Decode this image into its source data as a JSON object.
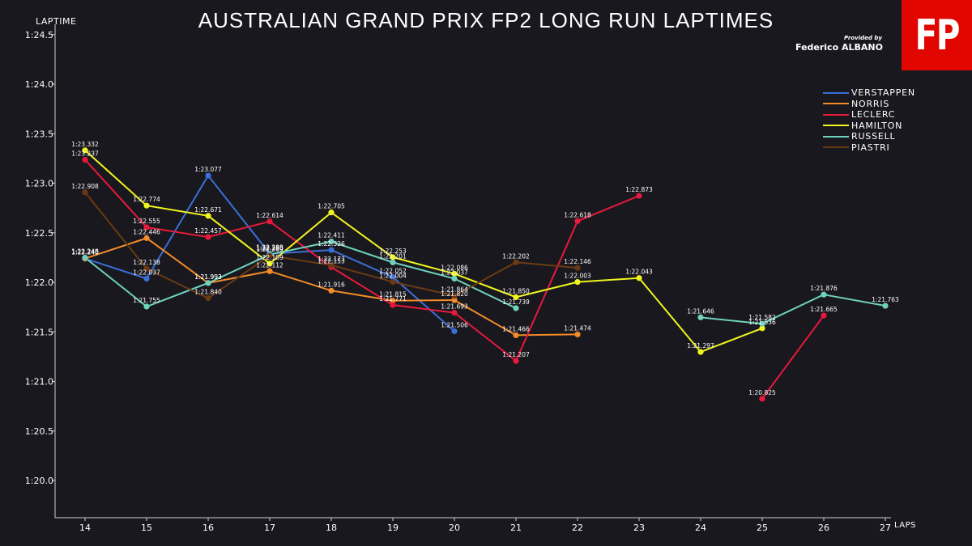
{
  "header": {
    "title": "AUSTRALIAN GRAND PRIX FP2 LONG RUN LAPTIMES",
    "credit_prefix": "Provided by",
    "credit_name": "Federico ALBANO",
    "logo_text": "FP",
    "logo_color": "#e10600"
  },
  "chart_data": {
    "type": "line",
    "title": "AUSTRALIAN GRAND PRIX FP2 LONG RUN LAPTIMES",
    "xlabel": "LAPS",
    "ylabel": "LAPTIME",
    "xlim": [
      13.5,
      27.5
    ],
    "ylim": [
      79.6,
      84.55
    ],
    "x_ticks": [
      14,
      15,
      16,
      17,
      18,
      19,
      20,
      21,
      22,
      23,
      24,
      25,
      26,
      27
    ],
    "y_ticks": [
      {
        "value": 80.0,
        "label": "1:20.0"
      },
      {
        "value": 80.5,
        "label": "1:20.5"
      },
      {
        "value": 81.0,
        "label": "1:21.0"
      },
      {
        "value": 81.5,
        "label": "1:21.5"
      },
      {
        "value": 82.0,
        "label": "1:22.0"
      },
      {
        "value": 82.5,
        "label": "1:22.5"
      },
      {
        "value": 83.0,
        "label": "1:23.0"
      },
      {
        "value": 83.5,
        "label": "1:23.5"
      },
      {
        "value": 84.0,
        "label": "1:24.0"
      },
      {
        "value": 84.5,
        "label": "1:24.5"
      }
    ],
    "grid": false,
    "legend_position": "top-right",
    "series": [
      {
        "name": "VERSTAPPEN",
        "color": "#3a6fd8",
        "points": [
          {
            "x": 14,
            "y": 82.24,
            "label": "1:22.240"
          },
          {
            "x": 15,
            "y": 82.037,
            "label": "1:22.037"
          },
          {
            "x": 16,
            "y": 83.077,
            "label": "1:23.077"
          },
          {
            "x": 17,
            "y": 82.288,
            "label": "1:22.288"
          },
          {
            "x": 18,
            "y": 82.326,
            "label": "1:22.326"
          },
          {
            "x": 19,
            "y": 82.052,
            "label": "1:22.052"
          },
          {
            "x": 20,
            "y": 81.506,
            "label": "1:21.506"
          }
        ]
      },
      {
        "name": "NORRIS",
        "color": "#f28c28",
        "points": [
          {
            "x": 14,
            "y": 82.24,
            "label": "1:22.240"
          },
          {
            "x": 15,
            "y": 82.446,
            "label": "1:22.446"
          },
          {
            "x": 16,
            "y": 81.993,
            "label": "1:21.993"
          },
          {
            "x": 17,
            "y": 82.112,
            "label": "1:22.112"
          },
          {
            "x": 18,
            "y": 81.916,
            "label": "1:21.916"
          },
          {
            "x": 19,
            "y": 81.815,
            "label": "1:21.815"
          },
          {
            "x": 20,
            "y": 81.82,
            "label": "1:21.820"
          },
          {
            "x": 21,
            "y": 81.466,
            "label": "1:21.466"
          },
          {
            "x": 22,
            "y": 81.474,
            "label": "1:21.474"
          }
        ]
      },
      {
        "name": "LECLERC",
        "color": "#e8193c",
        "points": [
          {
            "x": 14,
            "y": 83.237,
            "label": "1:23.237"
          },
          {
            "x": 15,
            "y": 82.555,
            "label": "1:22.555"
          },
          {
            "x": 16,
            "y": 82.457,
            "label": "1:22.457"
          },
          {
            "x": 17,
            "y": 82.614,
            "label": "1:22.614"
          },
          {
            "x": 18,
            "y": 82.153,
            "label": "1:22.153"
          },
          {
            "x": 19,
            "y": 81.771,
            "label": "1:21.771"
          },
          {
            "x": 20,
            "y": 81.693,
            "label": "1:21.693"
          },
          {
            "x": 21,
            "y": 81.207,
            "label": "1:21.207"
          },
          {
            "x": 22,
            "y": 82.618,
            "label": "1:22.618"
          },
          {
            "x": 23,
            "y": 82.873,
            "label": "1:22.873"
          },
          {
            "x": 25,
            "y": 80.825,
            "label": "1:20.825"
          },
          {
            "x": 26,
            "y": 81.665,
            "label": "1:21.665"
          }
        ]
      },
      {
        "name": "HAMILTON",
        "color": "#f0f51e",
        "points": [
          {
            "x": 14,
            "y": 83.332,
            "label": "1:23.332"
          },
          {
            "x": 15,
            "y": 82.774,
            "label": "1:22.774"
          },
          {
            "x": 16,
            "y": 82.671,
            "label": "1:22.671"
          },
          {
            "x": 17,
            "y": 82.189,
            "label": "1:22.189"
          },
          {
            "x": 18,
            "y": 82.705,
            "label": "1:22.705"
          },
          {
            "x": 19,
            "y": 82.253,
            "label": "1:22.253"
          },
          {
            "x": 20,
            "y": 82.086,
            "label": "1:22.086"
          },
          {
            "x": 21,
            "y": 81.85,
            "label": "1:21.850"
          },
          {
            "x": 22,
            "y": 82.003,
            "label": "1:22.003"
          },
          {
            "x": 23,
            "y": 82.043,
            "label": "1:22.043"
          },
          {
            "x": 24,
            "y": 81.297,
            "label": "1:21.297"
          },
          {
            "x": 25,
            "y": 81.536,
            "label": "1:21.536"
          }
        ]
      },
      {
        "name": "RUSSELL",
        "color": "#6ed3be",
        "points": [
          {
            "x": 14,
            "y": 82.248,
            "label": "1:22.248"
          },
          {
            "x": 15,
            "y": 81.755,
            "label": "1:21.755"
          },
          {
            "x": 16,
            "y": 81.993,
            "label": "1:21.993"
          },
          {
            "x": 17,
            "y": 82.28,
            "label": "1:22.280"
          },
          {
            "x": 18,
            "y": 82.411,
            "label": "1:22.411"
          },
          {
            "x": 19,
            "y": 82.201,
            "label": "1:22.201"
          },
          {
            "x": 20,
            "y": 82.037,
            "label": "1:22.037"
          },
          {
            "x": 21,
            "y": 81.739,
            "label": "1:21.739"
          },
          {
            "x": 24,
            "y": 81.646,
            "label": "1:21.646"
          },
          {
            "x": 25,
            "y": 81.582,
            "label": "1:21.582"
          },
          {
            "x": 26,
            "y": 81.876,
            "label": "1:21.876"
          },
          {
            "x": 27,
            "y": 81.763,
            "label": "1:21.763"
          }
        ]
      },
      {
        "name": "PIASTRI",
        "color": "#6b3a14",
        "points": [
          {
            "x": 14,
            "y": 82.908,
            "label": "1:22.908"
          },
          {
            "x": 15,
            "y": 82.138,
            "label": "1:22.138"
          },
          {
            "x": 16,
            "y": 81.84,
            "label": "1:21.840"
          },
          {
            "x": 17,
            "y": 82.269,
            "label": "1:22.269"
          },
          {
            "x": 18,
            "y": 82.173,
            "label": "1:22.173"
          },
          {
            "x": 19,
            "y": 82.004,
            "label": "1:22.004"
          },
          {
            "x": 20,
            "y": 81.864,
            "label": "1:21.864"
          },
          {
            "x": 21,
            "y": 82.202,
            "label": "1:22.202"
          },
          {
            "x": 22,
            "y": 82.146,
            "label": "1:22.146"
          }
        ]
      }
    ]
  }
}
